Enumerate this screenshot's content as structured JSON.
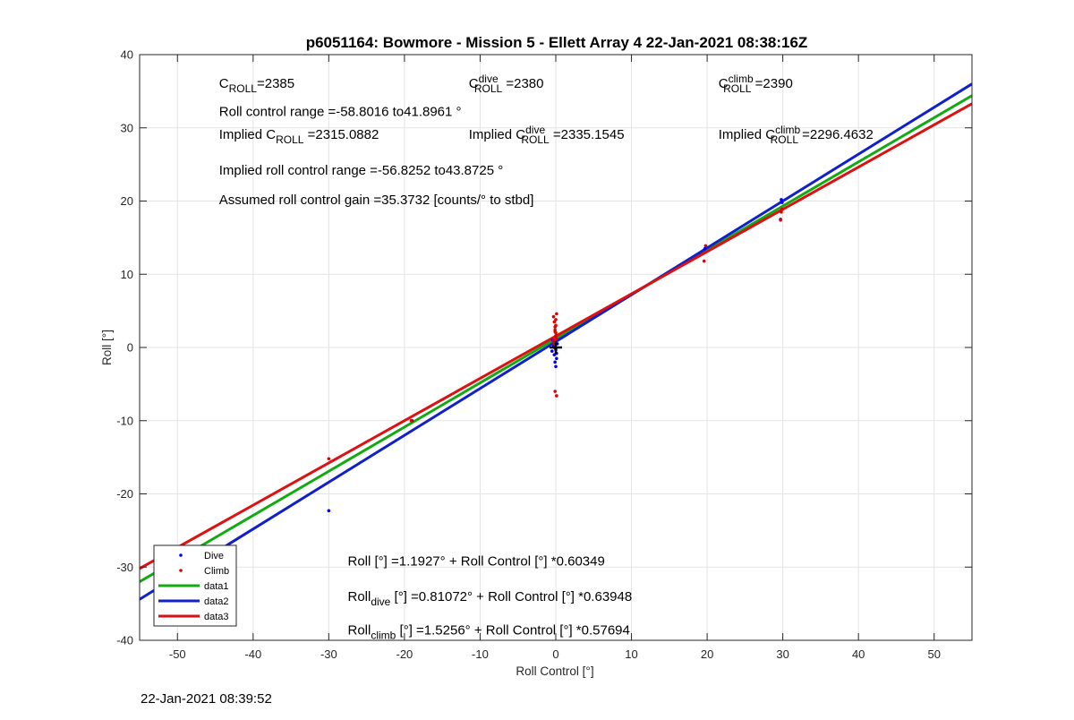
{
  "footer_timestamp": "22-Jan-2021 08:39:52",
  "colors": {
    "dive": "#0000ff",
    "climb": "#e00000",
    "data1": "#11aa11",
    "data2": "#1020cc",
    "data3": "#dd1111",
    "grid": "#e3e3e3",
    "axis": "#262626",
    "mean_marker": "#000000"
  },
  "chart_data": {
    "type": "scatter",
    "title": "p6051164: Bowmore - Mission 5 - Ellett Array 4 22-Jan-2021 08:38:16Z",
    "xlabel": "Roll Control [°]",
    "ylabel": "Roll [°]",
    "xlim": [
      -55,
      55
    ],
    "ylim": [
      -40,
      40
    ],
    "grid": true,
    "x_ticks": [
      "-50",
      "-40",
      "-30",
      "-20",
      "-10",
      "0",
      "10",
      "20",
      "30",
      "40",
      "50"
    ],
    "y_ticks": [
      "-40",
      "-30",
      "-20",
      "-10",
      "0",
      "10",
      "20",
      "30",
      "40"
    ],
    "legend_position": "bottom-left",
    "legend": [
      "Dive",
      "Climb",
      "data1",
      "data2",
      "data3"
    ],
    "series": [
      {
        "name": "Dive",
        "kind": "scatter",
        "color": "#0000ff",
        "x": [
          -49.8,
          -30.0,
          -19.0,
          -0.5,
          -0.3,
          -0.2,
          -0.1,
          0.0,
          0.1,
          0.2,
          -0.4,
          0.0,
          -0.2,
          0.1,
          19.7,
          29.8,
          29.9,
          29.7
        ],
        "y": [
          -28.5,
          -22.3,
          -10.0,
          -0.5,
          0.2,
          -1.0,
          -2.0,
          -2.6,
          -1.5,
          0.5,
          1.0,
          -0.3,
          0.0,
          -0.8,
          13.5,
          20.2,
          19.8,
          17.5
        ]
      },
      {
        "name": "Climb",
        "kind": "scatter",
        "color": "#e00000",
        "x": [
          -49.7,
          -30.0,
          -19.1,
          -0.3,
          -0.2,
          -0.1,
          0.0,
          0.1,
          -0.2,
          0.0,
          0.1,
          -0.1,
          0.0,
          -0.3,
          -0.1,
          0.1,
          -0.2,
          0.0,
          -0.1,
          19.6,
          19.8,
          29.7,
          29.9,
          29.8
        ],
        "y": [
          -30.8,
          -15.2,
          -10.0,
          4.2,
          3.5,
          2.8,
          2.0,
          1.2,
          0.8,
          3.0,
          4.6,
          2.4,
          1.6,
          1.0,
          -6.0,
          -6.6,
          0.5,
          3.8,
          2.2,
          11.8,
          13.9,
          17.4,
          18.9,
          18.5
        ]
      },
      {
        "name": "data1",
        "kind": "line",
        "color": "#11aa11",
        "x": [
          -55,
          55
        ],
        "y": [
          -32.0,
          34.4
        ]
      },
      {
        "name": "data2",
        "kind": "line",
        "color": "#1020cc",
        "x": [
          -55,
          55
        ],
        "y": [
          -34.4,
          36.0
        ]
      },
      {
        "name": "data3",
        "kind": "line",
        "color": "#dd1111",
        "x": [
          -55,
          55
        ],
        "y": [
          -30.2,
          33.3
        ]
      }
    ],
    "mean_marker": {
      "x": 0.0,
      "y": 0.0
    },
    "annotations": [
      {
        "id": "c-roll",
        "x": -44.5,
        "y": 35.5,
        "runs": [
          {
            "t": "C"
          },
          {
            "t": "ROLL",
            "s": "sub"
          },
          {
            "t": "=2385"
          }
        ]
      },
      {
        "id": "c-roll-dive",
        "x": -11.5,
        "y": 35.5,
        "runs": [
          {
            "t": "C"
          },
          {
            "t": "dive",
            "s": "sup"
          },
          {
            "t": "ROLL",
            "s": "sub"
          },
          {
            "t": " =2380"
          }
        ]
      },
      {
        "id": "c-roll-climb",
        "x": 21.5,
        "y": 35.5,
        "runs": [
          {
            "t": "C"
          },
          {
            "t": "climb",
            "s": "sup"
          },
          {
            "t": "ROLL",
            "s": "sub"
          },
          {
            "t": " =2390"
          }
        ]
      },
      {
        "id": "roll-control-range",
        "x": -44.5,
        "y": 31.6,
        "runs": [
          {
            "t": "Roll control range =-58.8016 to41.8961 °"
          }
        ]
      },
      {
        "id": "implied-c-roll",
        "x": -44.5,
        "y": 28.5,
        "runs": [
          {
            "t": "Implied C"
          },
          {
            "t": "ROLL",
            "s": "sub"
          },
          {
            "t": " =2315.0882"
          }
        ]
      },
      {
        "id": "implied-c-roll-dive",
        "x": -11.5,
        "y": 28.5,
        "runs": [
          {
            "t": "Implied C"
          },
          {
            "t": "dive",
            "s": "sup"
          },
          {
            "t": "ROLL",
            "s": "sub"
          },
          {
            "t": " =2335.1545"
          }
        ]
      },
      {
        "id": "implied-c-roll-climb",
        "x": 21.5,
        "y": 28.5,
        "runs": [
          {
            "t": "Implied C"
          },
          {
            "t": "climb",
            "s": "sup"
          },
          {
            "t": "ROLL",
            "s": "sub"
          },
          {
            "t": " =2296.4632"
          }
        ]
      },
      {
        "id": "implied-roll-control-range",
        "x": -44.5,
        "y": 23.6,
        "runs": [
          {
            "t": "Implied roll control range =-56.8252 to43.8725 °"
          }
        ]
      },
      {
        "id": "assumed-gain",
        "x": -44.5,
        "y": 19.6,
        "runs": [
          {
            "t": "Assumed roll control gain =35.3732 [counts/° to stbd]"
          }
        ]
      },
      {
        "id": "fit-all",
        "x": -27.5,
        "y": -29.8,
        "runs": [
          {
            "t": "Roll [°] =1.1927° + Roll Control [°] *0.60349"
          }
        ]
      },
      {
        "id": "fit-dive",
        "x": -27.5,
        "y": -34.6,
        "runs": [
          {
            "t": "Roll"
          },
          {
            "t": "dive",
            "s": "sub"
          },
          {
            "t": " [°] =0.81072° + Roll Control [°] *0.63948"
          }
        ]
      },
      {
        "id": "fit-climb",
        "x": -27.5,
        "y": -39.2,
        "runs": [
          {
            "t": "Roll"
          },
          {
            "t": "climb",
            "s": "sub"
          },
          {
            "t": " [°] =1.5256° + Roll Control [°] *0.57694"
          }
        ]
      }
    ]
  }
}
